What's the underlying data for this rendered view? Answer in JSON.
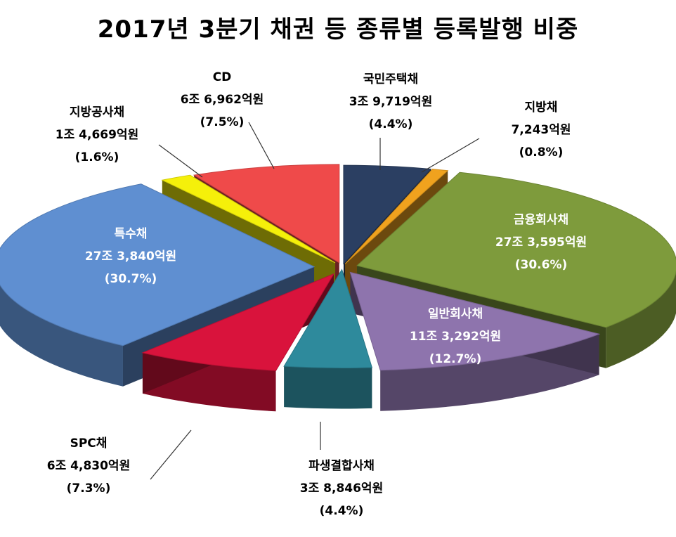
{
  "chart_data": {
    "type": "pie",
    "title": "2017년 3분기 채권 등 종류별 등록발행 비중",
    "slices": [
      {
        "name": "국민주택채",
        "amount": "3조 9,719억원",
        "percent_label": "(4.4%)",
        "value": 4.4,
        "color": "#2b3f62"
      },
      {
        "name": "지방채",
        "amount": "7,243억원",
        "percent_label": "(0.8%)",
        "value": 0.8,
        "color": "#f0a21e"
      },
      {
        "name": "금융회사채",
        "amount": "27조 3,595억원",
        "percent_label": "(30.6%)",
        "value": 30.6,
        "color": "#7e9b3c"
      },
      {
        "name": "일반회사채",
        "amount": "11조 3,292억원",
        "percent_label": "(12.7%)",
        "value": 12.7,
        "color": "#8e74ad"
      },
      {
        "name": "파생결합사채",
        "amount": "3조 8,846억원",
        "percent_label": "(4.4%)",
        "value": 4.4,
        "color": "#2e8a9c"
      },
      {
        "name": "SPC채",
        "amount": "6조 4,830억원",
        "percent_label": "(7.3%)",
        "value": 7.3,
        "color": "#d9133c"
      },
      {
        "name": "특수채",
        "amount": "27조 3,840억원",
        "percent_label": "(30.7%)",
        "value": 30.7,
        "color": "#5f8fd1"
      },
      {
        "name": "지방공사채",
        "amount": "1조 4,669억원",
        "percent_label": "(1.6%)",
        "value": 1.6,
        "color": "#f5f00a"
      },
      {
        "name": "CD",
        "amount": "6조 6,962억원",
        "percent_label": "(7.5%)",
        "value": 7.5,
        "color": "#ef4a4a"
      }
    ]
  }
}
